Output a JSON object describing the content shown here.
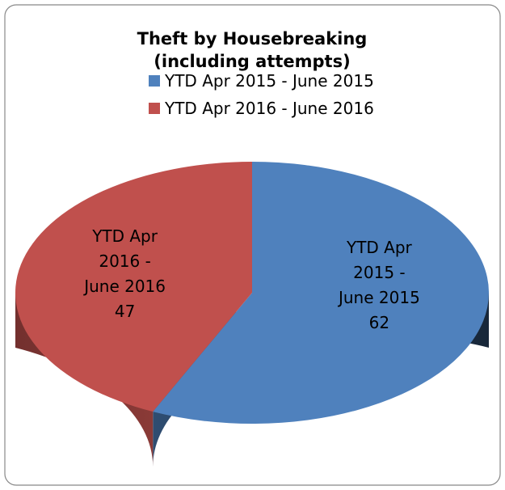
{
  "chart_data": {
    "type": "pie3d",
    "title": "Theft by Housebreaking (including attempts)",
    "categories": [
      "YTD Apr 2015 - June 2015",
      "YTD Apr 2016 - June 2016"
    ],
    "values": [
      62,
      47
    ],
    "colors": [
      "#4f81bd",
      "#c0504d"
    ],
    "legend": "top"
  }
}
